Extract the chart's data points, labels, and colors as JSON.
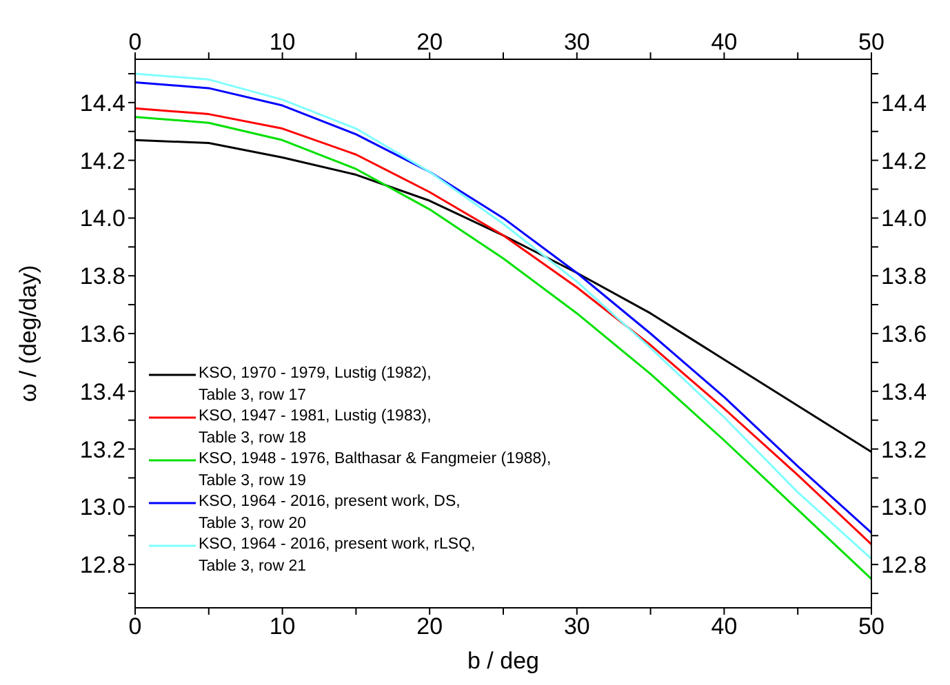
{
  "chart_data": {
    "type": "line",
    "xlabel": "b / deg",
    "ylabel": "ω / (deg/day)",
    "x": [
      0,
      5,
      10,
      15,
      20,
      25,
      30,
      35,
      40,
      45,
      50
    ],
    "series": [
      {
        "name": "KSO, 1970 - 1979, Lustig (1982),\nTable 3, row 17",
        "color": "#000000",
        "values": [
          14.27,
          14.26,
          14.21,
          14.15,
          14.06,
          13.94,
          13.81,
          13.67,
          13.51,
          13.35,
          13.19
        ]
      },
      {
        "name": "KSO, 1947 - 1981, Lustig (1983),\nTable 3, row 18",
        "color": "#ff0000",
        "values": [
          14.38,
          14.36,
          14.31,
          14.22,
          14.09,
          13.94,
          13.76,
          13.56,
          13.34,
          13.11,
          12.87
        ]
      },
      {
        "name": "KSO, 1948 - 1976, Balthasar & Fangmeier (1988),\nTable 3, row 19",
        "color": "#00e000",
        "values": [
          14.35,
          14.33,
          14.27,
          14.17,
          14.03,
          13.86,
          13.67,
          13.46,
          13.23,
          12.99,
          12.75
        ]
      },
      {
        "name": "KSO, 1964 - 2016, present work, DS,\nTable 3, row 20",
        "color": "#0000ff",
        "values": [
          14.47,
          14.45,
          14.39,
          14.29,
          14.16,
          14.0,
          13.81,
          13.6,
          13.38,
          13.14,
          12.91
        ]
      },
      {
        "name": "KSO, 1964 - 2016, present work, rLSQ,\nTable 3, row 21",
        "color": "#80ffff",
        "values": [
          14.5,
          14.48,
          14.41,
          14.31,
          14.16,
          13.98,
          13.78,
          13.55,
          13.31,
          13.05,
          12.82
        ]
      }
    ],
    "xlim": [
      0,
      50
    ],
    "xticks": [
      0,
      {
        "value": 5,
        "label": null
      },
      10,
      {
        "value": 15,
        "label": null
      },
      20,
      {
        "value": 25,
        "label": null
      },
      30,
      {
        "value": 35,
        "label": null
      },
      40,
      {
        "value": 45,
        "label": null
      },
      50
    ],
    "x2lim": [
      0,
      50
    ],
    "x2ticks": [
      0,
      {
        "value": 5,
        "label": null
      },
      10,
      {
        "value": 15,
        "label": null
      },
      20,
      {
        "value": 25,
        "label": null
      },
      30,
      {
        "value": 35,
        "label": null
      },
      40,
      {
        "value": 45,
        "label": null
      },
      50
    ],
    "ylim": [
      12.65,
      14.55
    ],
    "yticks": [
      {
        "value": 12.7,
        "label": null
      },
      12.8,
      {
        "value": 12.9,
        "label": null
      },
      {
        "value": 13,
        "label": "13.0"
      },
      {
        "value": 13.1,
        "label": null
      },
      13.2,
      {
        "value": 13.3,
        "label": null
      },
      13.4,
      {
        "value": 13.5,
        "label": null
      },
      13.6,
      {
        "value": 13.7,
        "label": null
      },
      13.8,
      {
        "value": 13.9,
        "label": null
      },
      {
        "value": 14,
        "label": "14.0"
      },
      {
        "value": 14.1,
        "label": null
      },
      14.2,
      {
        "value": 14.3,
        "label": null
      },
      14.4,
      {
        "value": 14.5,
        "label": null
      }
    ],
    "y2lim": [
      12.65,
      14.55
    ],
    "y2ticks": [
      {
        "value": 12.7,
        "label": null
      },
      12.8,
      {
        "value": 12.9,
        "label": null
      },
      {
        "value": 13,
        "label": "13.0"
      },
      {
        "value": 13.1,
        "label": null
      },
      13.2,
      {
        "value": 13.3,
        "label": null
      },
      13.4,
      {
        "value": 13.5,
        "label": null
      },
      13.6,
      {
        "value": 13.7,
        "label": null
      },
      13.8,
      {
        "value": 13.9,
        "label": null
      },
      {
        "value": 14,
        "label": "14.0"
      },
      {
        "value": 14.1,
        "label": null
      },
      14.2,
      {
        "value": 14.3,
        "label": null
      },
      14.4,
      {
        "value": 14.5,
        "label": null
      }
    ],
    "grid": false,
    "legend": "bottom left",
    "marker": "none",
    "line_style": "solid"
  }
}
